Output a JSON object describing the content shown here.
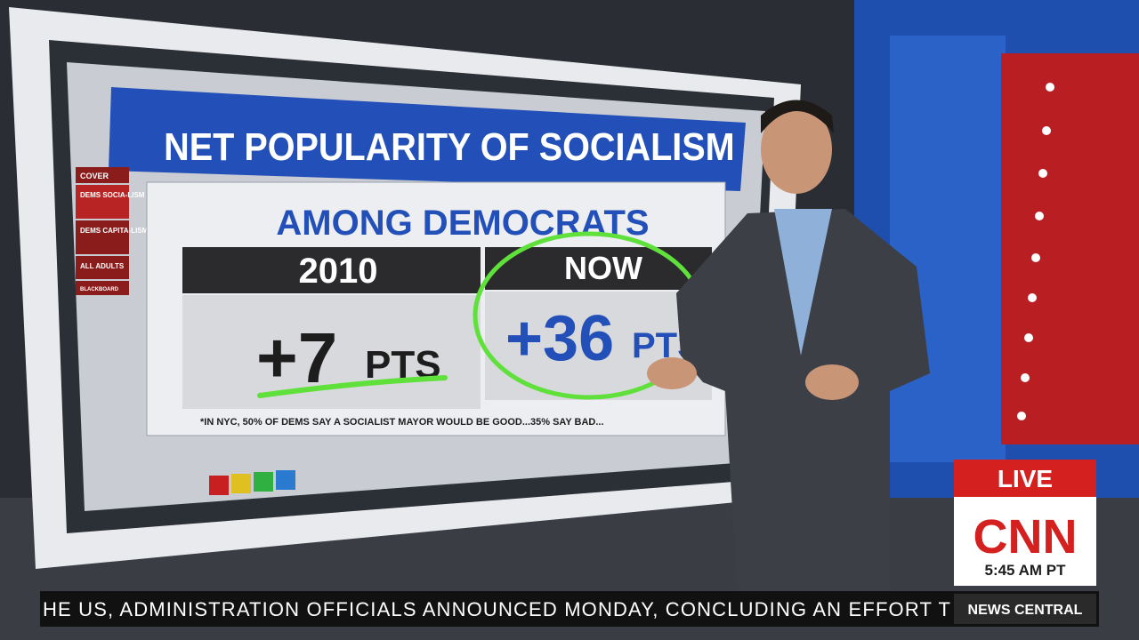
{
  "screen": {
    "title": "NET POPULARITY OF SOCIALISM",
    "subtitle": "AMONG DEMOCRATS",
    "menu": [
      "COVER",
      "DEMS SOCIA-LISM",
      "DEMS CAPITA-LISM",
      "ALL ADULTS",
      "BLACKBOARD"
    ],
    "columns": [
      {
        "header": "2010",
        "value": "+7",
        "unit": "PTS"
      },
      {
        "header": "NOW",
        "value": "+36",
        "unit": "PTS"
      }
    ],
    "footnote": "*IN NYC, 50% OF DEMS SAY A SOCIALIST MAYOR WOULD BE GOOD...35% SAY BAD..."
  },
  "bug": {
    "live": "LIVE",
    "network": "CNN",
    "time": "5:45 AM PT"
  },
  "ticker": {
    "text": "HE US, ADMINISTRATION OFFICIALS ANNOUNCED MONDAY, CONCLUDING AN EFFORT T",
    "show": "NEWS CENTRAL"
  }
}
